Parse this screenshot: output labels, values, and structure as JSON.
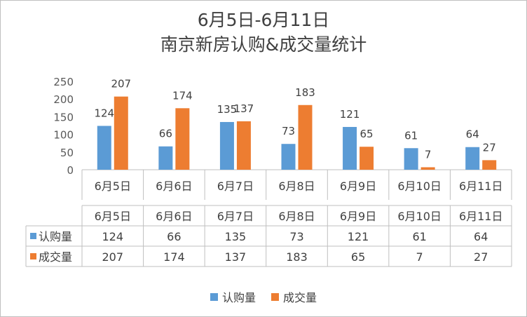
{
  "chart_data": {
    "type": "bar",
    "title": "6月5日-6月11日",
    "subtitle": "南京新房认购&成交量统计",
    "categories": [
      "6月5日",
      "6月6日",
      "6月7日",
      "6月8日",
      "6月9日",
      "6月10日",
      "6月11日"
    ],
    "series": [
      {
        "name": "认购量",
        "values": [
          124,
          66,
          135,
          73,
          121,
          61,
          64
        ],
        "color": "#5b9bd5"
      },
      {
        "name": "成交量",
        "values": [
          207,
          174,
          137,
          183,
          65,
          7,
          27
        ],
        "color": "#ed7d31"
      }
    ],
    "ylim": [
      0,
      250
    ],
    "yticks": [
      0,
      50,
      100,
      150,
      200,
      250
    ],
    "grid": false,
    "data_table": true,
    "legend": "bottom"
  }
}
